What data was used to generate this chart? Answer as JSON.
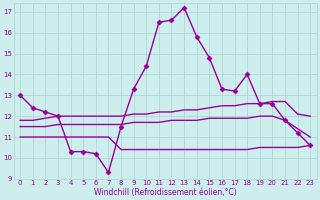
{
  "xlabel": "Windchill (Refroidissement éolien,°C)",
  "xlim": [
    -0.5,
    23.5
  ],
  "ylim": [
    9,
    17.4
  ],
  "yticks": [
    9,
    10,
    11,
    12,
    13,
    14,
    15,
    16,
    17
  ],
  "xticks": [
    0,
    1,
    2,
    3,
    4,
    5,
    6,
    7,
    8,
    9,
    10,
    11,
    12,
    13,
    14,
    15,
    16,
    17,
    18,
    19,
    20,
    21,
    22,
    23
  ],
  "bg_color": "#cdeeed",
  "grid_color": "#aed8d5",
  "line_color": "#990099",
  "lines": [
    {
      "x": [
        0,
        1,
        2,
        3,
        4,
        5,
        6,
        7,
        8,
        9,
        10,
        11,
        12,
        13,
        14,
        15,
        16,
        17,
        18,
        19,
        20,
        21,
        22,
        23
      ],
      "y": [
        13.0,
        12.4,
        12.2,
        12.0,
        10.3,
        10.3,
        10.2,
        9.3,
        11.5,
        13.3,
        14.4,
        16.5,
        16.6,
        17.2,
        15.8,
        14.8,
        13.3,
        13.2,
        14.0,
        12.6,
        12.6,
        11.8,
        11.2,
        10.6
      ],
      "marker": "D",
      "markersize": 2.5,
      "linewidth": 1.0
    },
    {
      "x": [
        0,
        1,
        2,
        3,
        4,
        5,
        6,
        7,
        8,
        9,
        10,
        11,
        12,
        13,
        14,
        15,
        16,
        17,
        18,
        19,
        20,
        21,
        22,
        23
      ],
      "y": [
        11.8,
        11.8,
        11.9,
        12.0,
        12.0,
        12.0,
        12.0,
        12.0,
        12.0,
        12.1,
        12.1,
        12.2,
        12.2,
        12.3,
        12.3,
        12.4,
        12.5,
        12.5,
        12.6,
        12.6,
        12.7,
        12.7,
        12.1,
        12.0
      ],
      "marker": null,
      "markersize": 0,
      "linewidth": 1.0
    },
    {
      "x": [
        0,
        1,
        2,
        3,
        4,
        5,
        6,
        7,
        8,
        9,
        10,
        11,
        12,
        13,
        14,
        15,
        16,
        17,
        18,
        19,
        20,
        21,
        22,
        23
      ],
      "y": [
        11.5,
        11.5,
        11.5,
        11.6,
        11.6,
        11.6,
        11.6,
        11.6,
        11.6,
        11.7,
        11.7,
        11.7,
        11.8,
        11.8,
        11.8,
        11.9,
        11.9,
        11.9,
        11.9,
        12.0,
        12.0,
        11.8,
        11.4,
        11.0
      ],
      "marker": null,
      "markersize": 0,
      "linewidth": 1.0
    },
    {
      "x": [
        0,
        1,
        2,
        3,
        4,
        5,
        6,
        7,
        8,
        9,
        10,
        11,
        12,
        13,
        14,
        15,
        16,
        17,
        18,
        19,
        20,
        21,
        22,
        23
      ],
      "y": [
        11.0,
        11.0,
        11.0,
        11.0,
        11.0,
        11.0,
        11.0,
        11.0,
        10.4,
        10.4,
        10.4,
        10.4,
        10.4,
        10.4,
        10.4,
        10.4,
        10.4,
        10.4,
        10.4,
        10.5,
        10.5,
        10.5,
        10.5,
        10.6
      ],
      "marker": null,
      "markersize": 0,
      "linewidth": 1.0
    }
  ]
}
